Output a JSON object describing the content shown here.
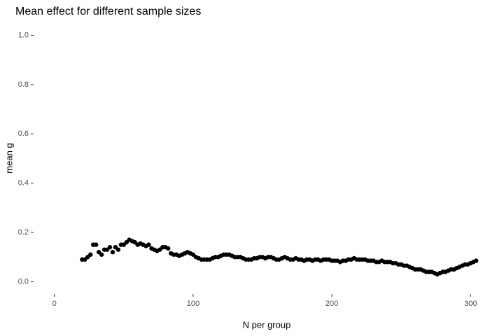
{
  "chart_data": {
    "type": "scatter",
    "title": "Mean effect for different sample sizes",
    "x_label": "N per group",
    "y_label": "mean g",
    "color": "#000000",
    "grid": false,
    "xlim": [
      -15,
      315
    ],
    "ylim": [
      -0.05,
      1.03
    ],
    "xticks": [
      0,
      100,
      200,
      300
    ],
    "yticks": [
      {
        "value": 0,
        "label": "0.0"
      },
      0.2,
      0.4,
      0.6,
      0.8,
      {
        "value": 1,
        "label": "1.0"
      }
    ],
    "x": [
      20,
      22,
      24,
      26,
      28,
      30,
      32,
      34,
      36,
      38,
      40,
      42,
      44,
      46,
      48,
      50,
      52,
      54,
      56,
      58,
      60,
      62,
      64,
      66,
      68,
      70,
      72,
      74,
      76,
      78,
      80,
      82,
      84,
      86,
      88,
      90,
      92,
      94,
      96,
      98,
      100,
      102,
      104,
      106,
      108,
      110,
      112,
      114,
      116,
      118,
      120,
      122,
      124,
      126,
      128,
      130,
      132,
      134,
      136,
      138,
      140,
      142,
      144,
      146,
      148,
      150,
      152,
      154,
      156,
      158,
      160,
      162,
      164,
      166,
      168,
      170,
      172,
      174,
      176,
      178,
      180,
      182,
      184,
      186,
      188,
      190,
      192,
      194,
      196,
      198,
      200,
      202,
      204,
      206,
      208,
      210,
      212,
      214,
      216,
      218,
      220,
      222,
      224,
      226,
      228,
      230,
      232,
      234,
      236,
      238,
      240,
      242,
      244,
      246,
      248,
      250,
      252,
      254,
      256,
      258,
      260,
      262,
      264,
      266,
      268,
      270,
      272,
      274,
      276,
      278,
      280,
      282,
      284,
      286,
      288,
      290,
      292,
      294,
      296,
      298,
      300,
      302,
      304
    ],
    "values": [
      0.09,
      0.09,
      0.1,
      0.11,
      0.15,
      0.15,
      0.12,
      0.11,
      0.13,
      0.13,
      0.14,
      0.12,
      0.14,
      0.13,
      0.15,
      0.15,
      0.16,
      0.17,
      0.165,
      0.16,
      0.15,
      0.155,
      0.15,
      0.145,
      0.15,
      0.135,
      0.13,
      0.125,
      0.13,
      0.14,
      0.14,
      0.135,
      0.115,
      0.11,
      0.11,
      0.105,
      0.11,
      0.115,
      0.12,
      0.115,
      0.11,
      0.1,
      0.095,
      0.09,
      0.09,
      0.09,
      0.09,
      0.095,
      0.1,
      0.1,
      0.105,
      0.11,
      0.11,
      0.11,
      0.105,
      0.1,
      0.1,
      0.1,
      0.095,
      0.09,
      0.09,
      0.09,
      0.095,
      0.095,
      0.1,
      0.1,
      0.095,
      0.1,
      0.1,
      0.095,
      0.09,
      0.09,
      0.095,
      0.1,
      0.095,
      0.09,
      0.09,
      0.095,
      0.09,
      0.09,
      0.085,
      0.09,
      0.09,
      0.085,
      0.09,
      0.09,
      0.085,
      0.09,
      0.09,
      0.09,
      0.085,
      0.085,
      0.085,
      0.08,
      0.085,
      0.085,
      0.09,
      0.09,
      0.095,
      0.09,
      0.09,
      0.09,
      0.09,
      0.085,
      0.085,
      0.085,
      0.08,
      0.08,
      0.085,
      0.08,
      0.08,
      0.08,
      0.075,
      0.075,
      0.07,
      0.07,
      0.065,
      0.065,
      0.06,
      0.055,
      0.05,
      0.05,
      0.05,
      0.045,
      0.04,
      0.04,
      0.04,
      0.035,
      0.03,
      0.035,
      0.04,
      0.04,
      0.045,
      0.05,
      0.05,
      0.055,
      0.06,
      0.065,
      0.07,
      0.07,
      0.075,
      0.08,
      0.085
    ]
  }
}
